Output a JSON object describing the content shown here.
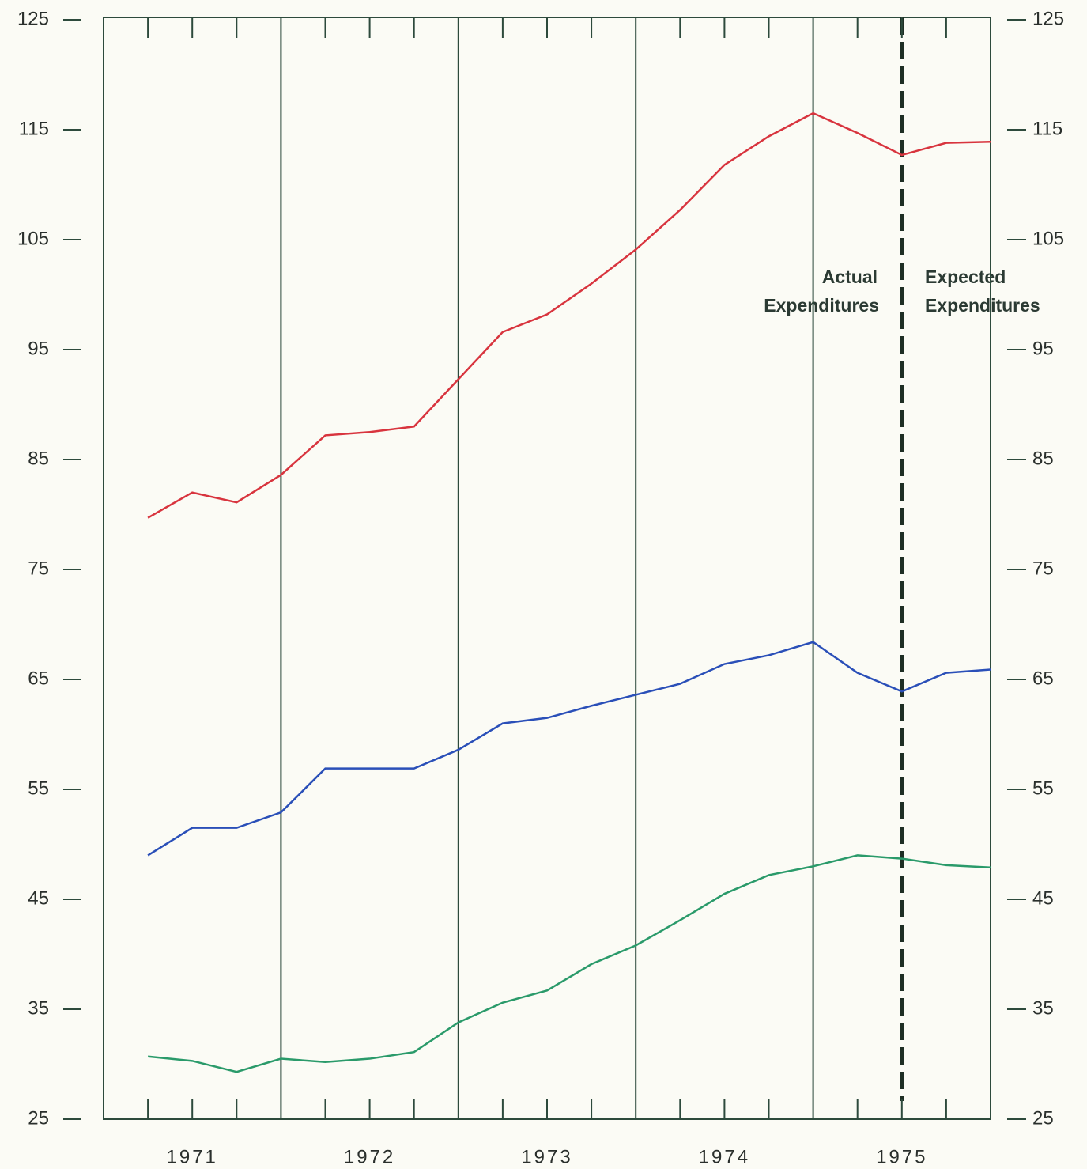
{
  "chart_data": {
    "type": "line",
    "categories": [
      null,
      "1971",
      null,
      null,
      null,
      "1972",
      null,
      null,
      null,
      "1973",
      null,
      null,
      null,
      "1974",
      null,
      null,
      null,
      "1975",
      null,
      null
    ],
    "series": [
      {
        "color": "#d8343e",
        "values": [
          79.7,
          82.0,
          81.1,
          83.6,
          87.2,
          87.5,
          88.0,
          92.3,
          96.6,
          98.2,
          101.0,
          104.1,
          107.7,
          111.8,
          114.4,
          116.5,
          114.7,
          112.7,
          113.8,
          113.9
        ]
      },
      {
        "color": "#2a4fb8",
        "values": [
          49.0,
          51.5,
          51.5,
          52.9,
          56.9,
          56.9,
          56.9,
          58.6,
          61.0,
          61.5,
          62.6,
          63.6,
          64.6,
          66.4,
          67.2,
          68.4,
          65.6,
          63.9,
          65.6,
          65.9
        ]
      },
      {
        "color": "#2a9a6a",
        "values": [
          30.7,
          30.3,
          29.3,
          30.5,
          30.2,
          30.5,
          31.1,
          33.8,
          35.6,
          36.7,
          39.1,
          40.8,
          43.1,
          45.5,
          47.2,
          48.0,
          49.0,
          48.7,
          48.1,
          47.9
        ]
      }
    ],
    "ylim": [
      25,
      125
    ],
    "yticks": [
      25,
      35,
      45,
      55,
      65,
      75,
      85,
      95,
      105,
      115,
      125
    ],
    "annotations": [
      [
        "Actual",
        "Expenditures"
      ],
      [
        "Expected",
        "Expenditures"
      ]
    ]
  }
}
